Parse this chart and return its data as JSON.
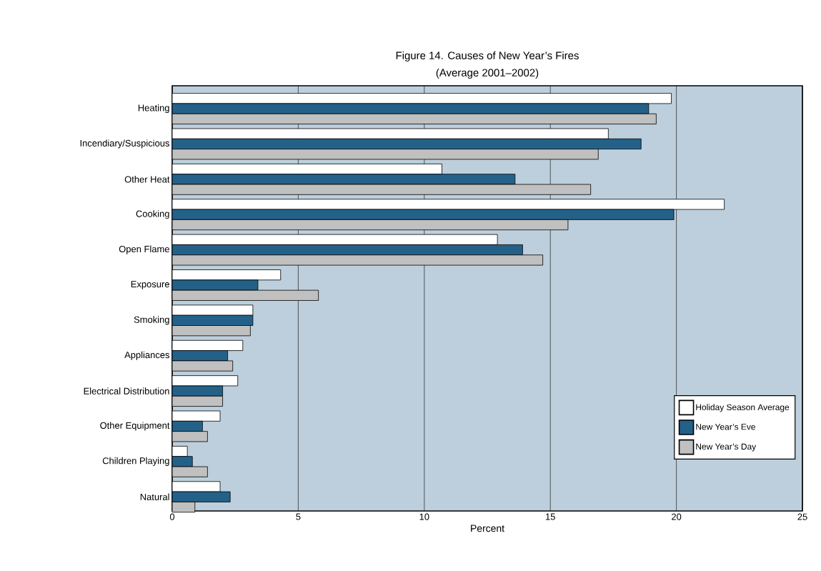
{
  "chart_data": {
    "type": "bar",
    "orientation": "horizontal",
    "title": "Figure 14.  Causes of New Year’s Fires",
    "subtitle": "(Average 2001–2002)",
    "xlabel": "Percent",
    "categories": [
      "Heating",
      "Incendiary/Suspicious",
      "Other Heat",
      "Cooking",
      "Open Flame",
      "Exposure",
      "Smoking",
      "Appliances",
      "Electrical Distribution",
      "Other Equipment",
      "Children Playing",
      "Natural"
    ],
    "series": [
      {
        "name": "Holiday Season Average",
        "color": "#ffffff",
        "values": [
          19.8,
          17.3,
          10.7,
          21.9,
          12.9,
          4.3,
          3.2,
          2.8,
          2.6,
          1.9,
          0.6,
          1.9
        ]
      },
      {
        "name": "New Year’s Eve",
        "color": "#246189",
        "values": [
          18.9,
          18.6,
          13.6,
          19.9,
          13.9,
          3.4,
          3.2,
          2.2,
          2.0,
          1.2,
          0.8,
          2.3
        ]
      },
      {
        "name": "New Year’s Day",
        "color": "#c0c0c0",
        "values": [
          19.2,
          16.9,
          16.6,
          15.7,
          14.7,
          5.8,
          3.1,
          2.4,
          2.0,
          1.4,
          1.4,
          0.9
        ]
      }
    ],
    "xlim": [
      0,
      25
    ],
    "xticks": [
      0,
      5,
      10,
      15,
      20,
      25
    ],
    "grid": "x",
    "legend": "bottom right"
  }
}
